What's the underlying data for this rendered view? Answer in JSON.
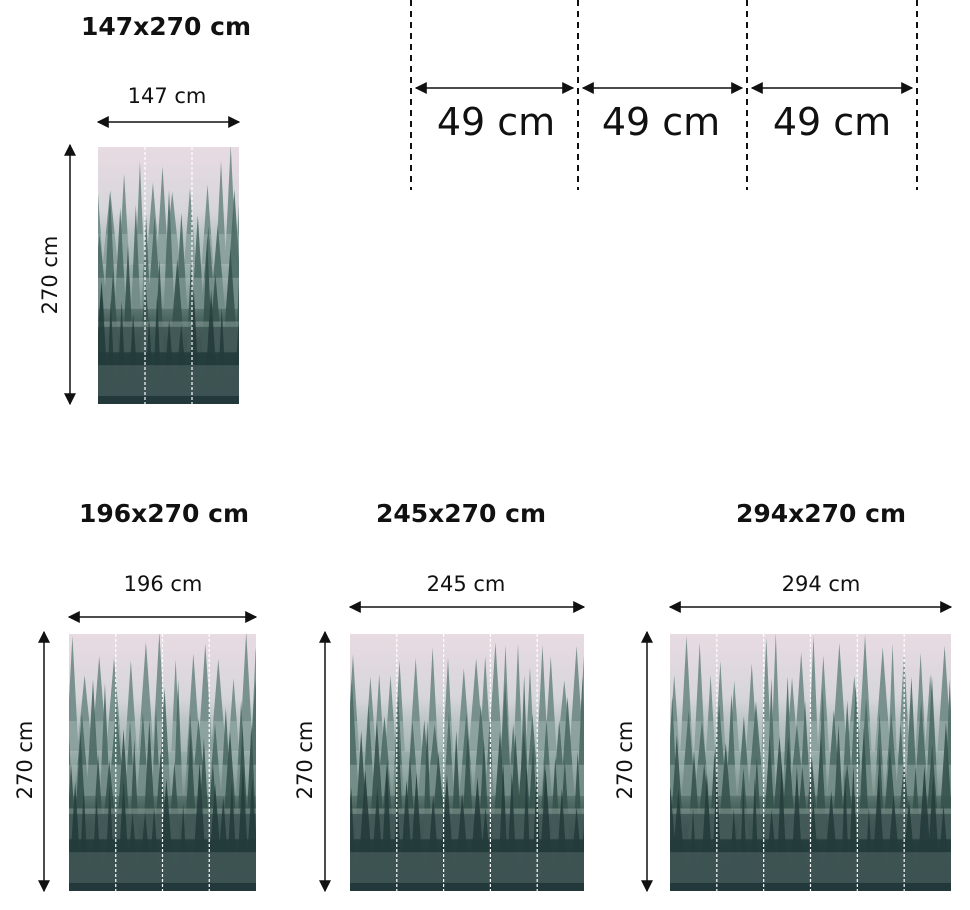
{
  "panel_width_detail": {
    "label": "49 cm",
    "count": 3
  },
  "panels": [
    {
      "title": "147x270 cm",
      "width_label": "147 cm",
      "height_label": "270 cm",
      "strips": 3
    },
    {
      "title": "196x270 cm",
      "width_label": "196 cm",
      "height_label": "270 cm",
      "strips": 4
    },
    {
      "title": "245x270 cm",
      "width_label": "245 cm",
      "height_label": "270 cm",
      "strips": 5
    },
    {
      "title": "294x270 cm",
      "width_label": "294 cm",
      "height_label": "270 cm",
      "strips": 6
    }
  ],
  "colors": {
    "sky": "#e8dbe2",
    "fog": "#b9c8c4",
    "forest": "#2c4743",
    "dark_forest": "#22383a"
  }
}
